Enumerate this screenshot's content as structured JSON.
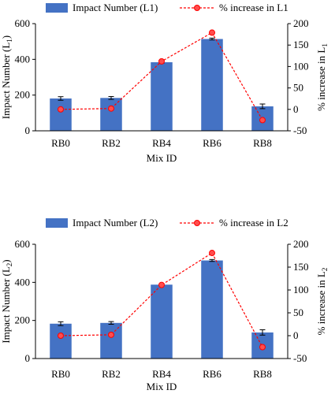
{
  "colors": {
    "bar": "#4472c4",
    "line": "#ff0000",
    "marker_fill": "#ff4d4d",
    "axis": "#000000"
  },
  "chart_data": [
    {
      "type": "bar",
      "categories": [
        "RB0",
        "RB2",
        "RB4",
        "RB6",
        "RB8"
      ],
      "xlabel": "Mix ID",
      "ylabel": "Impact Number (L",
      "ylabel_sub": "1",
      "ylabel_right": "% increase in L",
      "ylabel_right_sub": "1",
      "ylim": [
        0,
        600
      ],
      "yticks": [
        0,
        200,
        400,
        600
      ],
      "ylim_right": [
        -50,
        200
      ],
      "yticks_right": [
        -50,
        0,
        50,
        100,
        150,
        200
      ],
      "legend_position": "top",
      "series": [
        {
          "name": "Impact Number (L1)",
          "kind": "bar",
          "axis": "left",
          "values": [
            181,
            184,
            384,
            514,
            137
          ],
          "errors": [
            10,
            8,
            5,
            5,
            13
          ]
        },
        {
          "name": "% increase in L1",
          "kind": "line",
          "axis": "right",
          "values": [
            0,
            2,
            112,
            179,
            -25
          ]
        }
      ]
    },
    {
      "type": "bar",
      "categories": [
        "RB0",
        "RB2",
        "RB4",
        "RB6",
        "RB8"
      ],
      "xlabel": "Mix ID",
      "ylabel": "Impact Number (L",
      "ylabel_sub": "2",
      "ylabel_right": "% increase in L",
      "ylabel_right_sub": "2",
      "ylim": [
        0,
        600
      ],
      "yticks": [
        0,
        200,
        400,
        600
      ],
      "ylim_right": [
        -50,
        200
      ],
      "yticks_right": [
        -50,
        0,
        50,
        100,
        150,
        200
      ],
      "legend_position": "top",
      "series": [
        {
          "name": "Impact Number (L2)",
          "kind": "bar",
          "axis": "left",
          "values": [
            183,
            187,
            388,
            515,
            137
          ],
          "errors": [
            10,
            7,
            5,
            5,
            14
          ]
        },
        {
          "name": "% increase in L2",
          "kind": "line",
          "axis": "right",
          "values": [
            0,
            2,
            111,
            181,
            -25
          ]
        }
      ]
    }
  ]
}
